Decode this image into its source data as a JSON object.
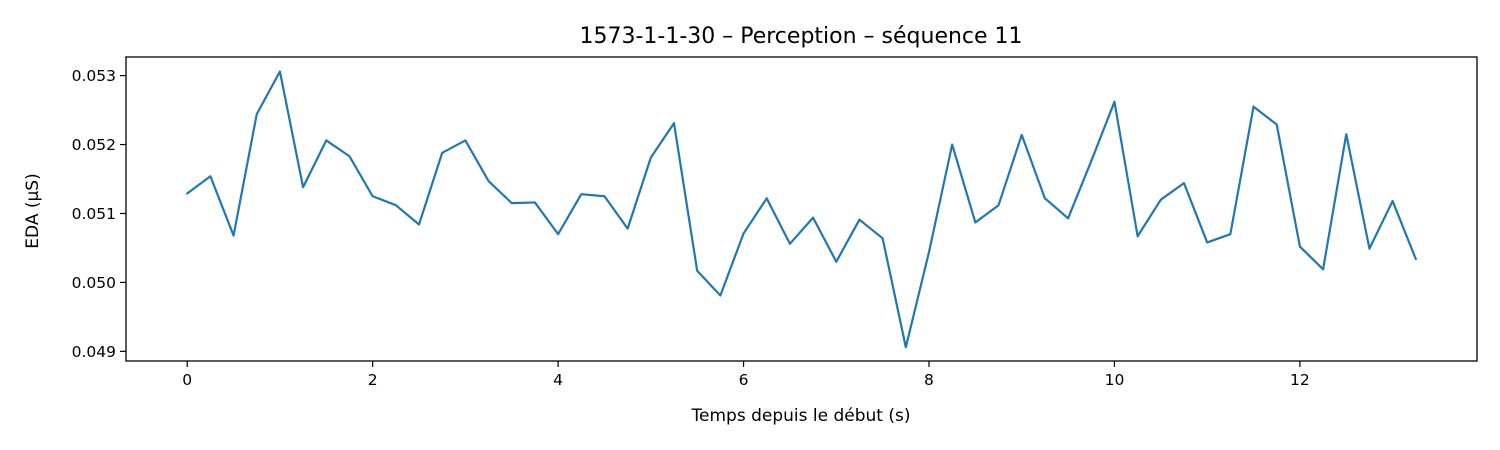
{
  "chart_data": {
    "type": "line",
    "title": "1573-1-1-30 – Perception – séquence 11",
    "xlabel": "Temps depuis le début (s)",
    "ylabel": "EDA (µS)",
    "xlim": [
      -0.66,
      13.91
    ],
    "ylim": [
      0.04886,
      0.05327
    ],
    "x_ticks": [
      0,
      2,
      4,
      6,
      8,
      10,
      12
    ],
    "x_tick_labels": [
      "0",
      "2",
      "4",
      "6",
      "8",
      "10",
      "12"
    ],
    "y_ticks": [
      0.049,
      0.05,
      0.051,
      0.052,
      0.053
    ],
    "y_tick_labels": [
      "0.049",
      "0.050",
      "0.051",
      "0.052",
      "0.053"
    ],
    "grid": false,
    "line_color": "#1f77b4",
    "series": [
      {
        "x": [
          0,
          0.25,
          0.5,
          0.75,
          1.0,
          1.25,
          1.5,
          1.75,
          2.0,
          2.25,
          2.5,
          2.75,
          3.0,
          3.25,
          3.5,
          3.75,
          4.0,
          4.25,
          4.5,
          4.75,
          5.0,
          5.25,
          5.5,
          5.75,
          6.0,
          6.25,
          6.5,
          6.75,
          7.0,
          7.25,
          7.5,
          7.75,
          8.0,
          8.25,
          8.5,
          8.75,
          9.0,
          9.25,
          9.5,
          9.75,
          10.0,
          10.25,
          10.5,
          10.75,
          11.0,
          11.25,
          11.5,
          11.75,
          12.0,
          12.25,
          12.5,
          12.75,
          13.0,
          13.25
        ],
        "values": [
          0.05129,
          0.05154,
          0.05068,
          0.05244,
          0.05306,
          0.05138,
          0.05206,
          0.05183,
          0.05125,
          0.05112,
          0.05084,
          0.05188,
          0.05206,
          0.05147,
          0.05115,
          0.05116,
          0.0507,
          0.05128,
          0.05125,
          0.05078,
          0.05181,
          0.05231,
          0.05017,
          0.04981,
          0.05071,
          0.05122,
          0.05056,
          0.05094,
          0.0503,
          0.05091,
          0.05064,
          0.04906,
          0.05044,
          0.052,
          0.05087,
          0.05112,
          0.05214,
          0.05122,
          0.05093,
          0.05176,
          0.05262,
          0.05067,
          0.0512,
          0.05144,
          0.05058,
          0.0507,
          0.05255,
          0.05229,
          0.05052,
          0.05019,
          0.05215,
          0.05049,
          0.05118,
          0.05034
        ]
      }
    ]
  }
}
